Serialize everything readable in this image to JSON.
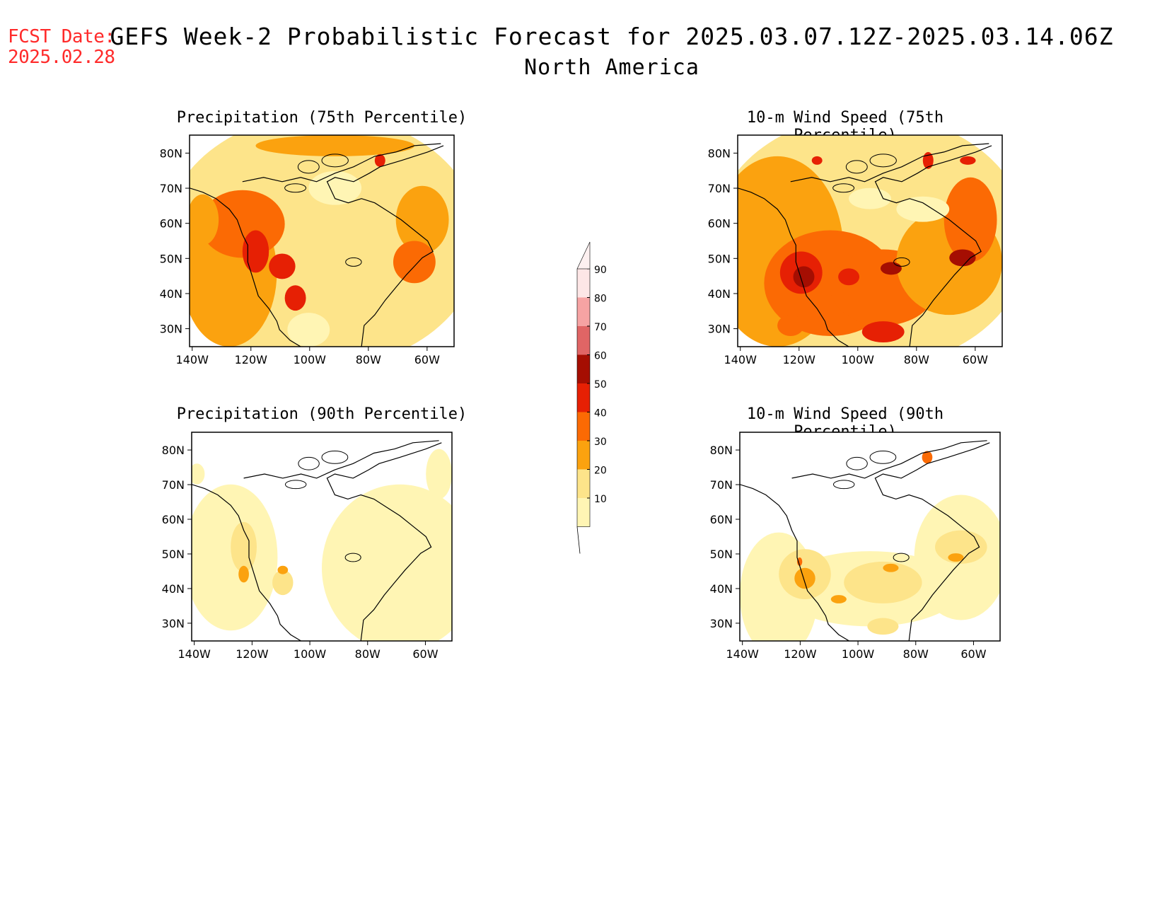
{
  "forecast_date": {
    "label": "FCST Date:",
    "value": "2025.02.28"
  },
  "title": "GEFS Week-2 Probabilistic Forecast for 2025.03.07.12Z-2025.03.14.06Z",
  "subtitle": "North America",
  "colors": {
    "10": "#fff5b4",
    "20": "#fde48a",
    "30": "#fba20f",
    "40": "#fb6a04",
    "50": "#e62004",
    "60": "#a50e02",
    "70": "#e06565",
    "80": "#f6a3a3",
    "90": "#fde6e6",
    "coast": "#000000"
  },
  "colorbar": {
    "labels": [
      "10",
      "20",
      "30",
      "40",
      "50",
      "60",
      "70",
      "80",
      "90"
    ]
  },
  "axes": {
    "lat_labels": [
      "80N",
      "70N",
      "60N",
      "50N",
      "40N",
      "30N"
    ],
    "lon_labels": [
      "140W",
      "120W",
      "100W",
      "80W",
      "60W"
    ]
  },
  "chart_data": [
    {
      "type": "heatmap",
      "title": "Precipitation (75th Percentile)",
      "lon_range": [
        -140,
        -50
      ],
      "lat_range": [
        25,
        85
      ],
      "dominant_classes": [
        "20",
        "30",
        "40",
        "50"
      ]
    },
    {
      "type": "heatmap",
      "title": "10-m Wind Speed (75th Percentile)",
      "lon_range": [
        -140,
        -50
      ],
      "lat_range": [
        25,
        85
      ],
      "dominant_classes": [
        "20",
        "30",
        "40",
        "50",
        "60"
      ]
    },
    {
      "type": "heatmap",
      "title": "Precipitation (90th Percentile)",
      "lon_range": [
        -140,
        -50
      ],
      "lat_range": [
        25,
        85
      ],
      "dominant_classes": [
        "10",
        "20",
        "30"
      ]
    },
    {
      "type": "heatmap",
      "title": "10-m Wind Speed (90th Percentile)",
      "lon_range": [
        -140,
        -50
      ],
      "lat_range": [
        25,
        85
      ],
      "dominant_classes": [
        "10",
        "20",
        "30",
        "40"
      ]
    }
  ]
}
